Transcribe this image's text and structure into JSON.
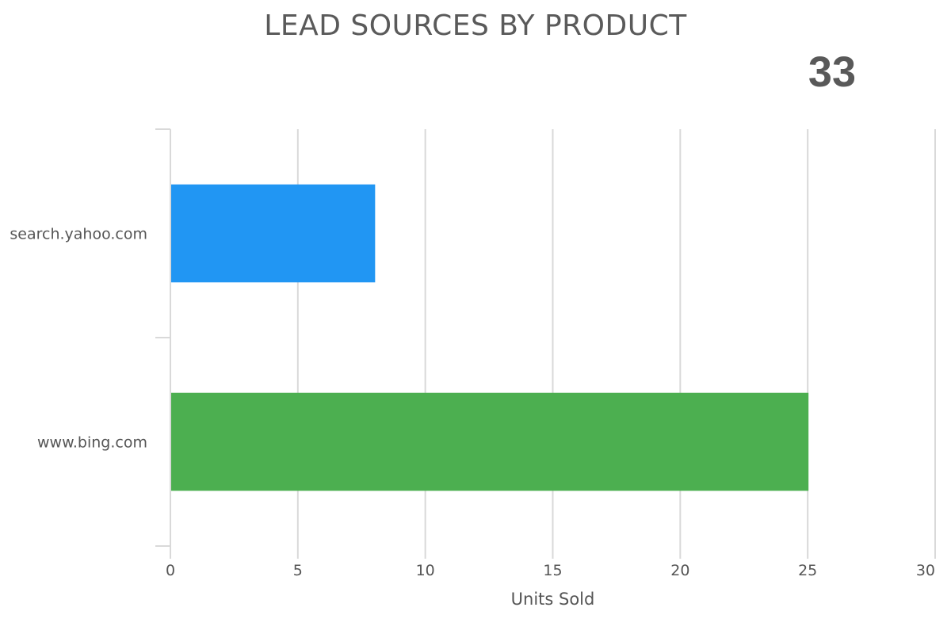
{
  "title": "LEAD SOURCES BY PRODUCT",
  "total": "33",
  "colors": {
    "grid": "#d9d9d9",
    "text": "#555555"
  },
  "chart_data": {
    "type": "bar",
    "orientation": "horizontal",
    "title": "LEAD SOURCES BY PRODUCT",
    "xlabel": "Units Sold",
    "ylabel": "",
    "xlim": [
      0,
      30
    ],
    "xticks": [
      0,
      5,
      10,
      15,
      20,
      25,
      30
    ],
    "grid": true,
    "categories": [
      "search.yahoo.com",
      "www.bing.com"
    ],
    "values": [
      8,
      25
    ],
    "bar_colors": [
      "#2196f3",
      "#4caf50"
    ]
  }
}
